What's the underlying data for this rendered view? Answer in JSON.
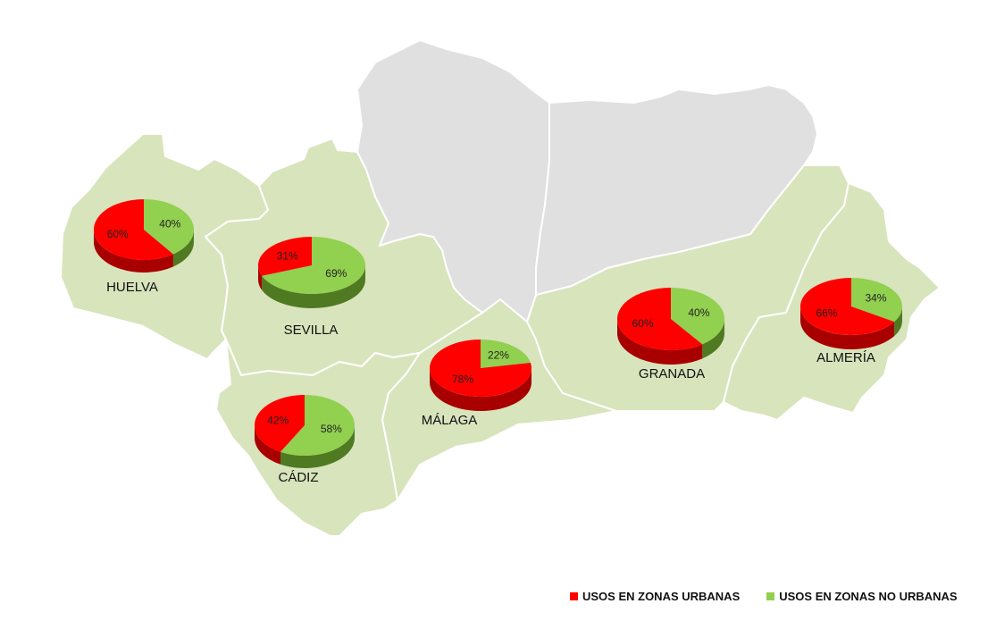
{
  "colors": {
    "urban": "#ff0000",
    "urban_side": "#a80000",
    "non_urban": "#92d050",
    "non_urban_side": "#4f7a22",
    "province_fill": "#d8e4bc",
    "excluded_fill": "#e0e0e0",
    "border": "#ffffff"
  },
  "legend": {
    "urban_label": "USOS EN ZONAS URBANAS",
    "non_urban_label": "USOS EN ZONAS NO URBANAS"
  },
  "chart_data": {
    "type": "pie",
    "series_labels": [
      "USOS EN ZONAS URBANAS",
      "USOS EN ZONAS NO URBANAS"
    ],
    "provinces": [
      {
        "name": "HUELVA",
        "urban_pct": 60,
        "non_urban_pct": 40,
        "urban_label": "60%",
        "non_urban_label": "40%"
      },
      {
        "name": "SEVILLA",
        "urban_pct": 31,
        "non_urban_pct": 69,
        "urban_label": "31%",
        "non_urban_label": "69%"
      },
      {
        "name": "CÁDIZ",
        "urban_pct": 42,
        "non_urban_pct": 58,
        "urban_label": "42%",
        "non_urban_label": "58%"
      },
      {
        "name": "MÁLAGA",
        "urban_pct": 78,
        "non_urban_pct": 22,
        "urban_label": "78%",
        "non_urban_label": "22%"
      },
      {
        "name": "GRANADA",
        "urban_pct": 60,
        "non_urban_pct": 40,
        "urban_label": "60%",
        "non_urban_label": "40%"
      },
      {
        "name": "ALMERÍA",
        "urban_pct": 66,
        "non_urban_pct": 34,
        "urban_label": "66%",
        "non_urban_label": "34%"
      }
    ]
  }
}
